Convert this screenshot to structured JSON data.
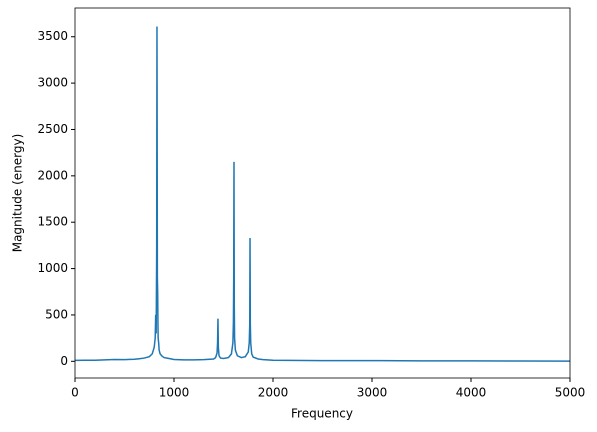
{
  "chart_data": {
    "type": "line",
    "xlabel": "Frequency",
    "ylabel": "Magnitude (energy)",
    "x": [
      0,
      100,
      200,
      300,
      400,
      500,
      600,
      650,
      700,
      750,
      780,
      800,
      810,
      815,
      820,
      825,
      828,
      830,
      832,
      835,
      838,
      840,
      845,
      850,
      860,
      880,
      900,
      950,
      1000,
      1100,
      1200,
      1300,
      1400,
      1420,
      1435,
      1440,
      1444,
      1448,
      1455,
      1470,
      1500,
      1550,
      1580,
      1595,
      1600,
      1603,
      1606,
      1609,
      1612,
      1620,
      1640,
      1680,
      1720,
      1750,
      1760,
      1765,
      1768,
      1771,
      1775,
      1785,
      1800,
      1850,
      1900,
      2000,
      2500,
      3000,
      3500,
      4000,
      4500,
      5000
    ],
    "series": [
      {
        "color": "#1f77b4",
        "values": [
          10,
          12,
          12,
          15,
          20,
          18,
          22,
          28,
          35,
          50,
          80,
          150,
          250,
          500,
          300,
          1200,
          3610,
          2400,
          900,
          760,
          400,
          250,
          200,
          120,
          80,
          55,
          40,
          30,
          20,
          15,
          15,
          18,
          25,
          40,
          90,
          200,
          460,
          150,
          60,
          35,
          30,
          40,
          80,
          200,
          420,
          900,
          2150,
          600,
          250,
          120,
          60,
          40,
          50,
          100,
          200,
          400,
          1330,
          400,
          200,
          80,
          45,
          25,
          18,
          12,
          8,
          8,
          5,
          4,
          3,
          2
        ]
      }
    ],
    "xlim": [
      0,
      5000
    ],
    "ylim": [
      -180,
      3810
    ],
    "xticks": [
      0,
      1000,
      2000,
      3000,
      4000,
      5000
    ],
    "yticks": [
      0,
      500,
      1000,
      1500,
      2000,
      2500,
      3000,
      3500
    ]
  }
}
